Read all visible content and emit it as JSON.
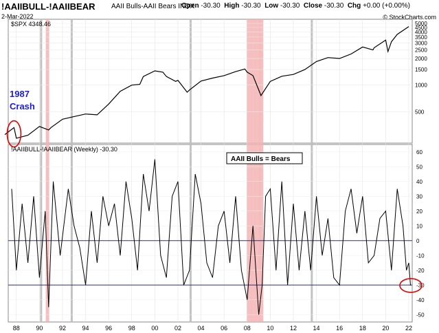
{
  "header": {
    "symbol": "!AAIIBULL-!AAIIBEAR",
    "description": "AAII Bulls-AAII Bears INDX",
    "date": "2-Mar-2022",
    "open_label": "Open",
    "open_value": "-30.30",
    "high_label": "High",
    "high_value": "-30.30",
    "low_label": "Low",
    "low_value": "-30.30",
    "close_label": "Close",
    "close_value": "-30.30",
    "chg_label": "Chg",
    "chg_value": "+0.00 (+0.00%)",
    "credit": "© StockCharts.com"
  },
  "chart_data": [
    {
      "type": "line",
      "legend": "$SPX 4348.46",
      "y_scale": "log",
      "ylim": [
        220,
        5000
      ],
      "y_ticks": [
        "5000",
        "4500",
        "4000",
        "3500",
        "3000",
        "2500",
        "2000",
        "1500",
        "1000",
        "500"
      ],
      "x": [
        "1987",
        "1987.8",
        "1988",
        "1989",
        "1990",
        "1990.8",
        "1991",
        "1992",
        "1993",
        "1994",
        "1995",
        "1996",
        "1997",
        "1998",
        "1998.7",
        "1999",
        "2000",
        "2000.7",
        "2001",
        "2001.8",
        "2002",
        "2002.8",
        "2003",
        "2004",
        "2005",
        "2006",
        "2007",
        "2007.8",
        "2008",
        "2008.5",
        "2009.2",
        "2010",
        "2011",
        "2012",
        "2013",
        "2014",
        "2015",
        "2016",
        "2017",
        "2018",
        "2018.9",
        "2019",
        "2020",
        "2020.2",
        "2020.5",
        "2021",
        "2022"
      ],
      "values": [
        275,
        330,
        250,
        270,
        340,
        310,
        330,
        410,
        440,
        470,
        460,
        610,
        850,
        1000,
        1020,
        1250,
        1450,
        1400,
        1250,
        1100,
        1130,
        830,
        880,
        1110,
        1200,
        1280,
        1420,
        1520,
        1400,
        1280,
        760,
        1100,
        1260,
        1320,
        1500,
        1850,
        2050,
        2000,
        2250,
        2700,
        2500,
        2650,
        3230,
        2400,
        3100,
        3750,
        4600
      ],
      "annotations": [
        {
          "text": "1987",
          "text2": "Crash"
        }
      ]
    },
    {
      "type": "line",
      "legend": "!AAIIBULL-!AAIIBEAR (Weekly) -30.30",
      "ylim": [
        -55,
        65
      ],
      "y_ticks": [
        60,
        50,
        40,
        30,
        20,
        10,
        0,
        -10,
        -20,
        -30,
        -40,
        -50
      ],
      "reference_lines": [
        0,
        -30
      ],
      "last_value": -30.3,
      "x_ticks": [
        "88",
        "90",
        "92",
        "94",
        "96",
        "98",
        "00",
        "02",
        "04",
        "06",
        "08",
        "10",
        "12",
        "14",
        "16",
        "18",
        "20",
        "22"
      ],
      "x_range": [
        1987.3,
        2022.3
      ],
      "highlight_periods": [
        1990.7,
        2008.1,
        2008.4,
        2008.7,
        2009.0,
        2009.25
      ],
      "gray_periods": [
        1990.15,
        1992.8,
        2003.1,
        2013.6
      ],
      "annotations": [
        {
          "text": "AAII Bulls = Bears"
        }
      ],
      "x": [
        1987.6,
        1988.0,
        1988.5,
        1989.0,
        1989.5,
        1990.0,
        1990.5,
        1990.8,
        1991.2,
        1991.8,
        1992.5,
        1993.0,
        1993.5,
        1994.0,
        1994.5,
        1995.0,
        1995.5,
        1996.0,
        1996.5,
        1997.0,
        1997.5,
        1998.0,
        1998.5,
        1999.0,
        1999.5,
        2000.0,
        2000.5,
        2001.0,
        2001.5,
        2002.0,
        2002.5,
        2003.0,
        2003.5,
        2004.0,
        2004.5,
        2005.0,
        2005.5,
        2006.0,
        2006.5,
        2007.0,
        2007.5,
        2008.0,
        2008.5,
        2009.0,
        2009.3,
        2009.6,
        2010.0,
        2010.5,
        2011.0,
        2011.5,
        2012.0,
        2012.5,
        2013.0,
        2013.5,
        2014.0,
        2014.5,
        2015.0,
        2015.5,
        2016.0,
        2016.5,
        2017.0,
        2017.5,
        2018.0,
        2018.5,
        2019.0,
        2019.5,
        2020.0,
        2020.5,
        2021.0,
        2021.5,
        2021.8,
        2022.0,
        2022.15
      ],
      "values": [
        35,
        -20,
        25,
        -15,
        30,
        -25,
        20,
        -45,
        40,
        -10,
        35,
        10,
        -5,
        -30,
        20,
        -15,
        30,
        10,
        25,
        -10,
        40,
        15,
        -20,
        45,
        20,
        55,
        -10,
        -25,
        30,
        40,
        -30,
        -20,
        45,
        25,
        -15,
        -25,
        10,
        20,
        -15,
        30,
        -20,
        -40,
        10,
        -50,
        -30,
        30,
        35,
        -20,
        40,
        -30,
        25,
        -20,
        20,
        -20,
        30,
        -10,
        15,
        -25,
        -30,
        20,
        35,
        5,
        30,
        -15,
        -10,
        15,
        20,
        -20,
        35,
        10,
        -20,
        -15,
        -30.3
      ]
    }
  ]
}
